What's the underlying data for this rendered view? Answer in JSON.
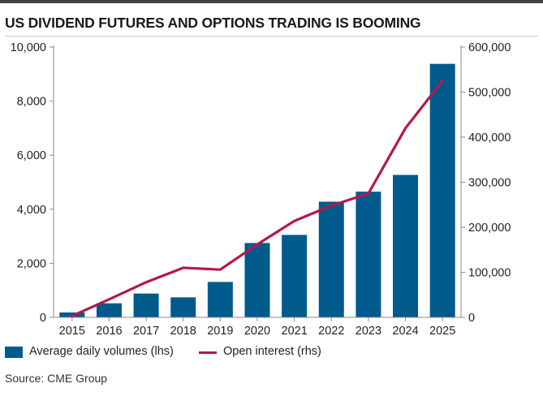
{
  "title": "US DIVIDEND FUTURES AND OPTIONS TRADING IS BOOMING",
  "source": "Source: CME Group",
  "colors": {
    "bar": "#005a8c",
    "line": "#b5174f",
    "topbar": "#444444",
    "axis": "#888888"
  },
  "chart_data": {
    "type": "bar+line",
    "categories": [
      "2015",
      "2016",
      "2017",
      "2018",
      "2019",
      "2020",
      "2021",
      "2022",
      "2023",
      "2024",
      "2025"
    ],
    "series": [
      {
        "name": "Average daily volumes (lhs)",
        "type": "bar",
        "axis": "left",
        "values": [
          180,
          520,
          880,
          740,
          1310,
          2750,
          3050,
          4280,
          4650,
          5270,
          9380
        ]
      },
      {
        "name": "Open interest (rhs)",
        "type": "line",
        "axis": "right",
        "values": [
          3000,
          40000,
          78000,
          110000,
          106000,
          162000,
          214000,
          248000,
          275000,
          420000,
          525000
        ]
      }
    ],
    "y_left": {
      "min": 0,
      "max": 10000,
      "ticks": [
        0,
        2000,
        4000,
        6000,
        8000,
        10000
      ],
      "tick_labels": [
        "0",
        "2,000",
        "4,000",
        "6,000",
        "8,000",
        "10,000"
      ]
    },
    "y_right": {
      "min": 0,
      "max": 600000,
      "ticks": [
        0,
        100000,
        200000,
        300000,
        400000,
        500000,
        600000
      ],
      "tick_labels": [
        "0",
        "100,000",
        "200,000",
        "300,000",
        "400,000",
        "500,000",
        "600,000"
      ]
    },
    "grid": false,
    "legend": "bottom-left"
  }
}
